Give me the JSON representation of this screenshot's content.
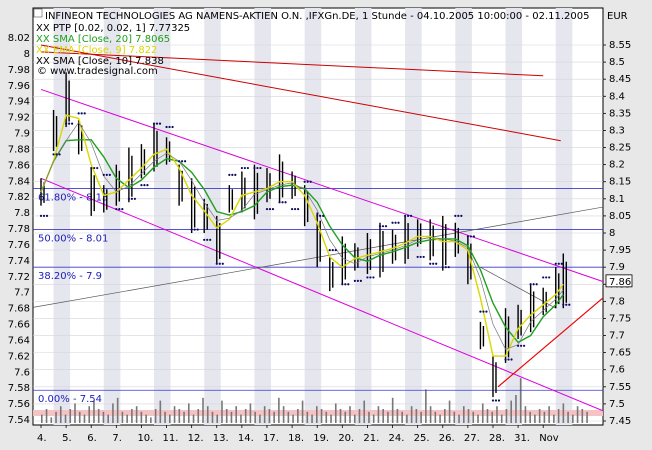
{
  "chart_data": {
    "type": "line",
    "title": "INFINEON TECHNOLOGIES AG NAMENS-AKTIEN O.N. ,IFXGn.DE, 1 Stunde - 04.10.2005 10:00:00 - 02.11.2005",
    "currency_label": "EUR",
    "watermark": "© www.tradesignal.com",
    "legend": [
      {
        "name": "XX PTP [0.02, 0.02, 1] 7.77325",
        "color": "#000000"
      },
      {
        "name": "XX SMA [Close, 20] 7.8065",
        "color": "#1fa01f"
      },
      {
        "name": "XX EMA [Close, 9] 7.822",
        "color": "#d8d800"
      },
      {
        "name": "XX SMA [Close, 10] 7.838",
        "color": "#000000"
      }
    ],
    "left_axis": {
      "ylim": [
        7.54,
        8.02
      ],
      "ticks": [
        "8.02",
        "8",
        "7.98",
        "7.96",
        "7.94",
        "7.92",
        "7.9",
        "7.88",
        "7.86",
        "7.84",
        "7.82",
        "7.8",
        "7.78",
        "7.76",
        "7.74",
        "7.72",
        "7.7",
        "7.68",
        "7.66",
        "7.64",
        "7.62",
        "7.6",
        "7.58",
        "7.56",
        "7.54"
      ]
    },
    "right_axis": {
      "ylim": [
        7.45,
        8.55
      ],
      "ticks": [
        "8.55",
        "8.5",
        "8.45",
        "8.4",
        "8.35",
        "8.3",
        "8.25",
        "8.2",
        "8.15",
        "8.1",
        "8.05",
        "8",
        "7.95",
        "7.9",
        "7.85",
        "7.8",
        "7.75",
        "7.7",
        "7.65",
        "7.6",
        "7.55",
        "7.5",
        "7.45"
      ]
    },
    "x_labels": [
      "4.",
      "5.",
      "6.",
      "7.",
      "10.",
      "11.",
      "12.",
      "13.",
      "14.",
      "17.",
      "18.",
      "19.",
      "20.",
      "21.",
      "24.",
      "25.",
      "26.",
      "27.",
      "28.",
      "31.",
      "Nov"
    ],
    "last_price_label": "7.86",
    "fibonacci": [
      {
        "label": "61.80% - 8.13",
        "price": 8.13
      },
      {
        "label": "50.00% - 8.01",
        "price": 8.01
      },
      {
        "label": "38.20% - 7.9",
        "price": 7.9
      },
      {
        "label": "0.00% - 7.54",
        "price": 7.54
      }
    ],
    "price_series": [
      {
        "t": 0,
        "v": 8.12
      },
      {
        "t": 0.5,
        "v": 8.3
      },
      {
        "t": 1,
        "v": 8.39
      },
      {
        "t": 1.5,
        "v": 8.28
      },
      {
        "t": 2,
        "v": 8.12
      },
      {
        "t": 2.5,
        "v": 8.1
      },
      {
        "t": 3,
        "v": 8.14
      },
      {
        "t": 3.5,
        "v": 8.17
      },
      {
        "t": 4,
        "v": 8.21
      },
      {
        "t": 4.5,
        "v": 8.25
      },
      {
        "t": 5,
        "v": 8.24
      },
      {
        "t": 5.5,
        "v": 8.14
      },
      {
        "t": 6,
        "v": 8.08
      },
      {
        "t": 6.5,
        "v": 8.05
      },
      {
        "t": 7,
        "v": 7.98
      },
      {
        "t": 7.5,
        "v": 8.1
      },
      {
        "t": 8,
        "v": 8.12
      },
      {
        "t": 8.5,
        "v": 8.12
      },
      {
        "t": 9,
        "v": 8.14
      },
      {
        "t": 9.5,
        "v": 8.16
      },
      {
        "t": 10,
        "v": 8.14
      },
      {
        "t": 10.5,
        "v": 8.08
      },
      {
        "t": 11,
        "v": 7.98
      },
      {
        "t": 11.5,
        "v": 7.88
      },
      {
        "t": 12,
        "v": 7.92
      },
      {
        "t": 12.5,
        "v": 7.93
      },
      {
        "t": 13,
        "v": 7.94
      },
      {
        "t": 13.5,
        "v": 7.95
      },
      {
        "t": 14,
        "v": 7.96
      },
      {
        "t": 14.5,
        "v": 7.98
      },
      {
        "t": 15,
        "v": 8.0
      },
      {
        "t": 15.5,
        "v": 7.98
      },
      {
        "t": 16,
        "v": 7.97
      },
      {
        "t": 16.5,
        "v": 7.98
      },
      {
        "t": 17,
        "v": 7.92
      },
      {
        "t": 17.5,
        "v": 7.7
      },
      {
        "t": 18,
        "v": 7.58
      },
      {
        "t": 18.5,
        "v": 7.7
      },
      {
        "t": 19,
        "v": 7.74
      },
      {
        "t": 19.5,
        "v": 7.78
      },
      {
        "t": 20,
        "v": 7.8
      },
      {
        "t": 20.5,
        "v": 7.84
      },
      {
        "t": 20.8,
        "v": 7.86
      }
    ],
    "volume_series": [
      3,
      5,
      2,
      4,
      6,
      3,
      5,
      7,
      4,
      3,
      6,
      8,
      5,
      4,
      3,
      7,
      9,
      4,
      3,
      5,
      6,
      4,
      3,
      2,
      5,
      8,
      4,
      3,
      6,
      5,
      4,
      7,
      3,
      5,
      9,
      6,
      4,
      3,
      8,
      5,
      4,
      6,
      3,
      5,
      7,
      4,
      3,
      6,
      5,
      4,
      9,
      6,
      4,
      3,
      5,
      8,
      4,
      3,
      6,
      5,
      4,
      3,
      7,
      5,
      4,
      6,
      3,
      5,
      8,
      4,
      3,
      6,
      5,
      4,
      9,
      5,
      4,
      3,
      6,
      5,
      4,
      12,
      6,
      4,
      3,
      5,
      8,
      4,
      3,
      6,
      5,
      4,
      3,
      7,
      5,
      4,
      6,
      3,
      5,
      8,
      10,
      16,
      6,
      4,
      3,
      5,
      4,
      6,
      3,
      5,
      7,
      4,
      3,
      6,
      5,
      4
    ]
  }
}
